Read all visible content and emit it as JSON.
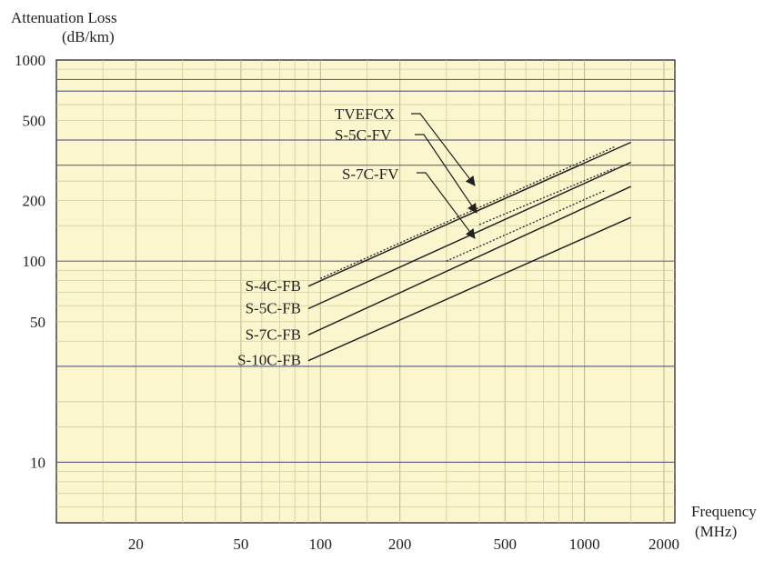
{
  "chart_data": {
    "type": "line",
    "title": "",
    "ylabel": "Attenuation Loss",
    "ylabel_unit": "(dB/km)",
    "xlabel": "Frequency",
    "xlabel_unit": "(MHz)",
    "x_scale": "log",
    "y_scale": "log",
    "xlim": [
      10,
      2200
    ],
    "ylim": [
      5,
      1000
    ],
    "grid": true,
    "background_color": "#fcf6cf",
    "x_ticks": [
      {
        "value": 20,
        "label": "20"
      },
      {
        "value": 50,
        "label": "50"
      },
      {
        "value": 100,
        "label": "100"
      },
      {
        "value": 200,
        "label": "200"
      },
      {
        "value": 500,
        "label": "500"
      },
      {
        "value": 1000,
        "label": "1000"
      },
      {
        "value": 2000,
        "label": "2000"
      }
    ],
    "y_ticks": [
      {
        "value": 10,
        "label": "10"
      },
      {
        "value": 50,
        "label": "50"
      },
      {
        "value": 100,
        "label": "100"
      },
      {
        "value": 200,
        "label": "200"
      },
      {
        "value": 500,
        "label": "500"
      },
      {
        "value": 1000,
        "label": "1000"
      }
    ],
    "series": [
      {
        "name": "S-4C-FB",
        "style": "solid",
        "x": [
          90,
          1500
        ],
        "y": [
          75,
          390
        ]
      },
      {
        "name": "S-5C-FB",
        "style": "solid",
        "x": [
          90,
          1500
        ],
        "y": [
          58,
          310
        ]
      },
      {
        "name": "S-7C-FB",
        "style": "solid",
        "x": [
          90,
          1500
        ],
        "y": [
          43,
          235
        ]
      },
      {
        "name": "S-10C-FB",
        "style": "solid",
        "x": [
          90,
          1500
        ],
        "y": [
          32,
          165
        ]
      },
      {
        "name": "TVEFCX",
        "style": "dotted",
        "x": [
          100,
          1300
        ],
        "y": [
          82,
          370
        ]
      },
      {
        "name": "S-5C-FV",
        "style": "dotted",
        "x": [
          400,
          1300
        ],
        "y": [
          152,
          290
        ]
      },
      {
        "name": "S-7C-FV",
        "style": "dotted",
        "x": [
          300,
          1200
        ],
        "y": [
          100,
          225
        ]
      }
    ]
  }
}
